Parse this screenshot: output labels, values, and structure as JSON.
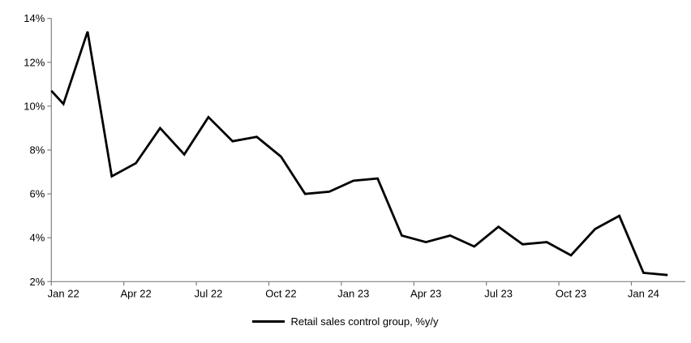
{
  "chart_data": {
    "type": "line",
    "title": "",
    "xlabel": "",
    "ylabel": "",
    "categories": [
      "Jan 22",
      "Feb 22",
      "Mar 22",
      "Apr 22",
      "May 22",
      "Jun 22",
      "Jul 22",
      "Aug 22",
      "Sep 22",
      "Oct 22",
      "Nov 22",
      "Dec 22",
      "Jan 23",
      "Feb 23",
      "Mar 23",
      "Apr 23",
      "May 23",
      "Jun 23",
      "Jul 23",
      "Aug 23",
      "Sep 23",
      "Oct 23",
      "Nov 23",
      "Dec 23",
      "Jan 24",
      "Feb 24"
    ],
    "series": [
      {
        "name": "Retail sales control group, %y/y",
        "color": "#000000",
        "values": [
          10.1,
          13.4,
          6.8,
          7.4,
          9.0,
          7.8,
          9.5,
          8.4,
          8.6,
          7.7,
          6.0,
          6.1,
          6.6,
          6.7,
          4.1,
          3.8,
          4.1,
          3.6,
          4.5,
          3.7,
          3.8,
          3.2,
          4.4,
          5.0,
          2.4,
          2.3
        ]
      }
    ],
    "edge_entry_value_at_axis": 10.7,
    "x_tick_labels": [
      "Jan 22",
      "Apr 22",
      "Jul 22",
      "Oct 22",
      "Jan 23",
      "Apr 23",
      "Jul 23",
      "Oct 23",
      "Jan 24"
    ],
    "x_tick_every_n_months": 3,
    "y_tick_labels": [
      "2%",
      "4%",
      "6%",
      "8%",
      "10%",
      "12%",
      "14%"
    ],
    "y_ticks": [
      2,
      4,
      6,
      8,
      10,
      12,
      14
    ],
    "ylim": [
      2,
      14
    ],
    "grid": false,
    "legend_position": "bottom-center"
  },
  "legend": {
    "label": "Retail sales control group, %y/y"
  },
  "colors": {
    "line": "#000000",
    "axis": "#808080",
    "text": "#000000",
    "background": "#ffffff"
  }
}
